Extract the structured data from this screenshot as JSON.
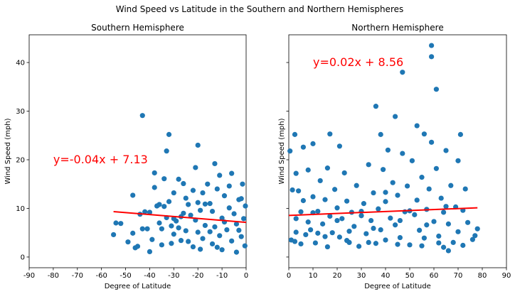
{
  "figure": {
    "suptitle": "Wind Speed vs Latitude in the Southern and Northern Hemispheres"
  },
  "chart_data": [
    {
      "type": "scatter",
      "title": "Southern Hemisphere",
      "xlabel": "Degree of Latitude",
      "ylabel": "Wind Speed (mph)",
      "xlim": [
        -90,
        0
      ],
      "ylim": [
        -2.2,
        45.7
      ],
      "xticks": [
        -90,
        -80,
        -70,
        -60,
        -50,
        -40,
        -30,
        -20,
        -10,
        0
      ],
      "yticks": [
        0,
        10,
        20,
        30,
        40
      ],
      "show_ylabel": true,
      "show_yticklabels": true,
      "grid": false,
      "point_color": "#1f77b4",
      "line_color": "#ff0000",
      "regression": {
        "slope": -0.04,
        "intercept": 7.13,
        "x_range": [
          -55,
          0
        ]
      },
      "annotation": {
        "text": "y=-0.04x + 7.13",
        "x": -80,
        "y": 20
      },
      "points": [
        [
          -55,
          4.6
        ],
        [
          -52,
          6.9
        ],
        [
          -47,
          12.7
        ],
        [
          -47,
          4.9
        ],
        [
          -46,
          1.9
        ],
        [
          -45,
          2.2
        ],
        [
          -43,
          29.1
        ],
        [
          -43,
          5.8
        ],
        [
          -42,
          9.3
        ],
        [
          -41,
          5.8
        ],
        [
          -40,
          1.1
        ],
        [
          -40,
          9.2
        ],
        [
          -38,
          17.3
        ],
        [
          -38,
          14.3
        ],
        [
          -37,
          10.5
        ],
        [
          -36,
          7.0
        ],
        [
          -35,
          5.8
        ],
        [
          -35,
          2.5
        ],
        [
          -34,
          16.1
        ],
        [
          -34,
          10.4
        ],
        [
          -33,
          21.8
        ],
        [
          -33,
          8.1
        ],
        [
          -32,
          25.2
        ],
        [
          -32,
          11.4
        ],
        [
          -31,
          6.4
        ],
        [
          -30,
          4.7
        ],
        [
          -30,
          13.2
        ],
        [
          -29,
          7.4
        ],
        [
          -28,
          16.0
        ],
        [
          -27,
          8.3
        ],
        [
          -27,
          3.4
        ],
        [
          -26,
          15.1
        ],
        [
          -25,
          12.1
        ],
        [
          -25,
          5.4
        ],
        [
          -24,
          10.8
        ],
        [
          -23,
          8.6
        ],
        [
          -22,
          2.1
        ],
        [
          -21,
          18.4
        ],
        [
          -21,
          7.6
        ],
        [
          -20,
          23.0
        ],
        [
          -20,
          5.1
        ],
        [
          -19,
          9.6
        ],
        [
          -18,
          13.2
        ],
        [
          -18,
          3.8
        ],
        [
          -17,
          6.5
        ],
        [
          -16,
          15.0
        ],
        [
          -15,
          11.0
        ],
        [
          -14,
          9.4
        ],
        [
          -14,
          2.7
        ],
        [
          -13,
          19.2
        ],
        [
          -13,
          6.2
        ],
        [
          -12,
          14.0
        ],
        [
          -11,
          4.4
        ],
        [
          -10,
          8.0
        ],
        [
          -10,
          1.5
        ],
        [
          -9,
          12.6
        ],
        [
          -8,
          5.6
        ],
        [
          -7,
          10.1
        ],
        [
          -6,
          17.2
        ],
        [
          -6,
          3.3
        ],
        [
          -5,
          8.9
        ],
        [
          -4,
          6.8
        ],
        [
          -3,
          11.8
        ],
        [
          -2,
          4.2
        ],
        [
          -1.5,
          15.0
        ],
        [
          -1,
          7.9
        ],
        [
          -0.5,
          2.3
        ],
        [
          -0.3,
          10.5
        ],
        [
          -54,
          7.0
        ],
        [
          -49,
          3.1
        ],
        [
          -44,
          8.8
        ],
        [
          -39,
          3.6
        ],
        [
          -36,
          10.8
        ],
        [
          -31,
          2.8
        ],
        [
          -28,
          6.0
        ],
        [
          -26,
          9.0
        ],
        [
          -24,
          3.2
        ],
        [
          -22,
          13.7
        ],
        [
          -19,
          1.6
        ],
        [
          -17,
          10.9
        ],
        [
          -15,
          5.2
        ],
        [
          -12,
          2.0
        ],
        [
          -9,
          7.2
        ],
        [
          -7,
          14.6
        ],
        [
          -4,
          1.0
        ],
        [
          -2,
          12.0
        ],
        [
          -30,
          7.9
        ],
        [
          -20,
          11.2
        ],
        [
          -11,
          16.8
        ],
        [
          -3,
          5.5
        ]
      ]
    },
    {
      "type": "scatter",
      "title": "Northern Hemisphere",
      "xlabel": "Degree of Latitude",
      "ylabel": "Wind Speed (mph)",
      "xlim": [
        0,
        90
      ],
      "ylim": [
        -2.2,
        45.7
      ],
      "xticks": [
        0,
        10,
        20,
        30,
        40,
        50,
        60,
        70,
        80,
        90
      ],
      "yticks": [
        0,
        10,
        20,
        30,
        40
      ],
      "show_ylabel": true,
      "show_yticklabels": false,
      "grid": false,
      "point_color": "#1f77b4",
      "line_color": "#ff0000",
      "regression": {
        "slope": 0.02,
        "intercept": 8.56,
        "x_range": [
          0,
          78
        ]
      },
      "annotation": {
        "text": "y=0.02x + 8.56",
        "x": 10,
        "y": 40
      },
      "points": [
        [
          0.5,
          21.8
        ],
        [
          1,
          3.5
        ],
        [
          1.5,
          13.8
        ],
        [
          2.5,
          25.2
        ],
        [
          2.5,
          3.2
        ],
        [
          3,
          17.2
        ],
        [
          3,
          7.9
        ],
        [
          4,
          13.6
        ],
        [
          5,
          9.3
        ],
        [
          5,
          2.7
        ],
        [
          6,
          22.6
        ],
        [
          6,
          11.6
        ],
        [
          7,
          4.6
        ],
        [
          8,
          17.9
        ],
        [
          8,
          7.2
        ],
        [
          9,
          5.6
        ],
        [
          10,
          23.3
        ],
        [
          10,
          12.4
        ],
        [
          11,
          2.9
        ],
        [
          12,
          9.4
        ],
        [
          13,
          15.7
        ],
        [
          14,
          6.8
        ],
        [
          15,
          11.8
        ],
        [
          16,
          2.1
        ],
        [
          16,
          18.3
        ],
        [
          17,
          25.3
        ],
        [
          17,
          8.4
        ],
        [
          18,
          5.0
        ],
        [
          19,
          13.9
        ],
        [
          20,
          10.1
        ],
        [
          21,
          22.8
        ],
        [
          21,
          4.1
        ],
        [
          22,
          7.9
        ],
        [
          23,
          17.3
        ],
        [
          24,
          11.5
        ],
        [
          25,
          3.0
        ],
        [
          26,
          9.2
        ],
        [
          27,
          6.3
        ],
        [
          28,
          14.7
        ],
        [
          29,
          2.2
        ],
        [
          30,
          8.5
        ],
        [
          31,
          11.0
        ],
        [
          32,
          4.8
        ],
        [
          33,
          19.0
        ],
        [
          34,
          7.5
        ],
        [
          35,
          13.2
        ],
        [
          36,
          31.0
        ],
        [
          36,
          2.8
        ],
        [
          37,
          9.9
        ],
        [
          38,
          25.2
        ],
        [
          38,
          5.6
        ],
        [
          39,
          18.0
        ],
        [
          40,
          11.4
        ],
        [
          40,
          3.5
        ],
        [
          41,
          22.0
        ],
        [
          42,
          8.0
        ],
        [
          43,
          15.3
        ],
        [
          44,
          28.9
        ],
        [
          44,
          6.6
        ],
        [
          45,
          12.7
        ],
        [
          46,
          4.0
        ],
        [
          47,
          38.0
        ],
        [
          47,
          21.3
        ],
        [
          48,
          9.3
        ],
        [
          49,
          14.6
        ],
        [
          50,
          2.5
        ],
        [
          51,
          19.8
        ],
        [
          52,
          8.7
        ],
        [
          53,
          27.0
        ],
        [
          53,
          11.7
        ],
        [
          54,
          5.5
        ],
        [
          55,
          16.4
        ],
        [
          56,
          25.3
        ],
        [
          56,
          3.9
        ],
        [
          57,
          9.8
        ],
        [
          58,
          14.0
        ],
        [
          59,
          43.5
        ],
        [
          59,
          41.2
        ],
        [
          59,
          23.6
        ],
        [
          60,
          7.3
        ],
        [
          61,
          34.5
        ],
        [
          61,
          18.2
        ],
        [
          62,
          4.3
        ],
        [
          63,
          12.1
        ],
        [
          64,
          9.2
        ],
        [
          64,
          2.0
        ],
        [
          65,
          21.9
        ],
        [
          66,
          6.8
        ],
        [
          67,
          14.7
        ],
        [
          68,
          3.0
        ],
        [
          69,
          10.3
        ],
        [
          70,
          19.8
        ],
        [
          70,
          5.2
        ],
        [
          71,
          25.2
        ],
        [
          72,
          9.6
        ],
        [
          72,
          2.4
        ],
        [
          73,
          14.0
        ],
        [
          74,
          7.1
        ],
        [
          76,
          3.6
        ],
        [
          77,
          4.4
        ],
        [
          78,
          5.8
        ],
        [
          3,
          5.1
        ],
        [
          12,
          4.9
        ],
        [
          24,
          3.4
        ],
        [
          33,
          3.0
        ],
        [
          45,
          2.6
        ],
        [
          55,
          2.3
        ],
        [
          62,
          2.9
        ],
        [
          66,
          1.3
        ],
        [
          50,
          9.5
        ],
        [
          40,
          13.3
        ],
        [
          30,
          9.4
        ],
        [
          20,
          7.5
        ],
        [
          10,
          9.1
        ],
        [
          65,
          10.4
        ],
        [
          57,
          6.6
        ],
        [
          46,
          7.5
        ],
        [
          35,
          5.9
        ],
        [
          25,
          5.3
        ],
        [
          15,
          4.2
        ]
      ]
    }
  ]
}
